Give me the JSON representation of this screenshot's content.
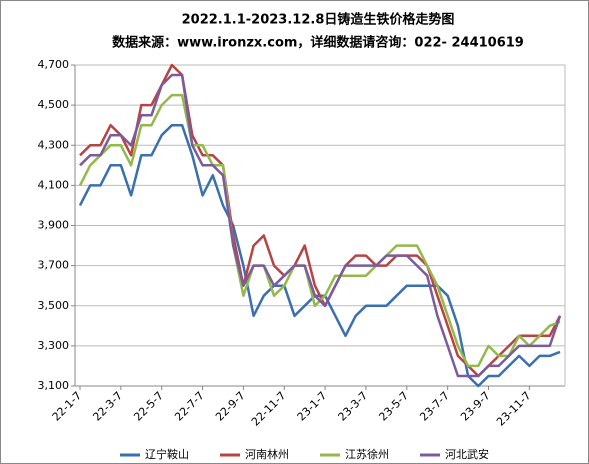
{
  "chart_data": {
    "type": "line",
    "title": "2022.1.1-2023.12.8日铸造生铁价格走势图",
    "subtitle": "数据来源：www.ironzx.com，详细数据请咨询：022- 24410619",
    "categories": [
      "22-1-7",
      null,
      null,
      null,
      "22-3-7",
      null,
      null,
      null,
      "22-5-7",
      null,
      null,
      null,
      "22-7-7",
      null,
      null,
      null,
      "22-9-7",
      null,
      null,
      null,
      "22-11-7",
      null,
      null,
      null,
      "23-1-7",
      null,
      null,
      null,
      "23-3-7",
      null,
      null,
      null,
      "23-5-7",
      null,
      null,
      null,
      "23-7-7",
      null,
      null,
      null,
      "23-9-7",
      null,
      null,
      null,
      "23-11-7",
      null,
      null,
      null
    ],
    "series": [
      {
        "name": "辽宁鞍山",
        "color": "#3a6fb0",
        "values": [
          4000,
          4100,
          4100,
          4200,
          4200,
          4050,
          4250,
          4250,
          4350,
          4400,
          4400,
          4250,
          4050,
          4150,
          4000,
          3900,
          3700,
          3450,
          3550,
          3600,
          3600,
          3450,
          3500,
          3550,
          3550,
          3450,
          3350,
          3450,
          3500,
          3500,
          3500,
          3550,
          3600,
          3600,
          3600,
          3600,
          3550,
          3400,
          3150,
          3100,
          3150,
          3150,
          3200,
          3250,
          3200,
          3250,
          3250,
          3270
        ]
      },
      {
        "name": "河南林州",
        "color": "#b84343",
        "values": [
          4250,
          4300,
          4300,
          4400,
          4350,
          4250,
          4500,
          4500,
          4600,
          4700,
          4650,
          4350,
          4250,
          4250,
          4200,
          3850,
          3600,
          3800,
          3850,
          3700,
          3650,
          3700,
          3800,
          3600,
          3500,
          3600,
          3700,
          3750,
          3750,
          3700,
          3700,
          3750,
          3750,
          3750,
          3700,
          3550,
          3400,
          3250,
          3200,
          3150,
          3200,
          3250,
          3300,
          3350,
          3350,
          3350,
          3350,
          3450
        ]
      },
      {
        "name": "江苏徐州",
        "color": "#94b94b",
        "values": [
          4100,
          4200,
          4250,
          4300,
          4300,
          4200,
          4400,
          4400,
          4500,
          4550,
          4550,
          4300,
          4300,
          4200,
          4200,
          3800,
          3550,
          3700,
          3700,
          3550,
          3600,
          3700,
          3700,
          3500,
          3550,
          3650,
          3650,
          3650,
          3650,
          3700,
          3750,
          3800,
          3800,
          3800,
          3700,
          3600,
          3450,
          3300,
          3200,
          3200,
          3300,
          3250,
          3250,
          3350,
          3300,
          3350,
          3400,
          3420
        ]
      },
      {
        "name": "河北武安",
        "color": "#7b5b9e",
        "values": [
          4200,
          4250,
          4250,
          4350,
          4350,
          4300,
          4450,
          4450,
          4600,
          4650,
          4650,
          4300,
          4200,
          4200,
          4150,
          3800,
          3600,
          3700,
          3700,
          3600,
          3650,
          3700,
          3700,
          3550,
          3500,
          3600,
          3700,
          3700,
          3700,
          3700,
          3750,
          3750,
          3750,
          3700,
          3650,
          3450,
          3300,
          3150,
          3150,
          3150,
          3200,
          3200,
          3250,
          3300,
          3300,
          3300,
          3300,
          3450
        ]
      }
    ],
    "ylim": [
      3100,
      4700
    ],
    "yticks": [
      {
        "value": 3100,
        "label": "3,100"
      },
      {
        "value": 3300,
        "label": "3,300"
      },
      {
        "value": 3500,
        "label": "3,500"
      },
      {
        "value": 3700,
        "label": "3,700"
      },
      {
        "value": 3900,
        "label": "3,900"
      },
      {
        "value": 4100,
        "label": "4,100"
      },
      {
        "value": 4300,
        "label": "4,300"
      },
      {
        "value": 4500,
        "label": "4,500"
      },
      {
        "value": 4700,
        "label": "4,700"
      }
    ],
    "grid": true,
    "legend": "bottom"
  }
}
